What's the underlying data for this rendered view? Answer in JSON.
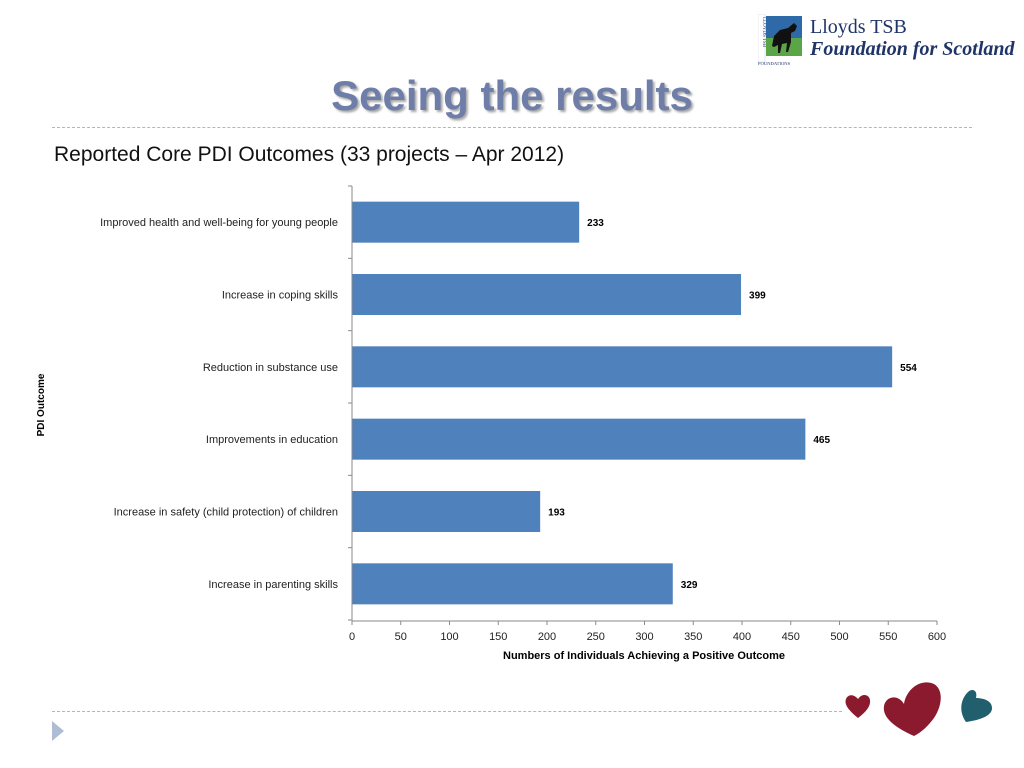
{
  "logo": {
    "line1": "Lloyds TSB",
    "line2": "Foundation for Scotland",
    "side_text": "LLOYDS TSB",
    "bottom_text": "FOUNDATIONS",
    "icon": "black-horse-icon"
  },
  "slide": {
    "title": "Seeing the results",
    "subtitle": "Reported Core PDI Outcomes (33 projects – Apr 2012)"
  },
  "colors": {
    "bar": "#4f81bd",
    "title": "#6f7ea8",
    "heart_red": "#8b1a2e",
    "heart_teal": "#215e6e",
    "divider": "#a7b8cf"
  },
  "chart_data": {
    "type": "bar",
    "orientation": "horizontal",
    "title": "",
    "xlabel": "Numbers of Individuals Achieving a Positive Outcome",
    "ylabel": "PDI Outcome",
    "categories": [
      "Improved health and well-being for young people",
      "Increase in coping skills",
      "Reduction in substance use",
      "Improvements in education",
      "Increase in safety (child protection) of children",
      "Increase in parenting skills"
    ],
    "values": [
      233,
      399,
      554,
      465,
      193,
      329
    ],
    "xlim": [
      0,
      600
    ],
    "xticks": [
      "0",
      "50",
      "100",
      "150",
      "200",
      "250",
      "300",
      "350",
      "400",
      "450",
      "500",
      "550",
      "600"
    ],
    "grid": false,
    "legend": "none"
  }
}
